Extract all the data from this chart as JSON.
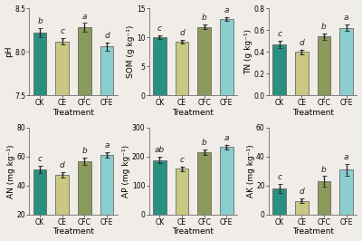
{
  "treatments": [
    "CK",
    "CE",
    "CFC",
    "CFE"
  ],
  "bar_colors": [
    "#2a9080",
    "#c8c882",
    "#8a9a5a",
    "#8acece"
  ],
  "edge_color": "#555555",
  "bg_color": "#f0ede8",
  "plots": [
    {
      "ylabel": "pH",
      "ylim": [
        7.5,
        8.5
      ],
      "yticks": [
        7.5,
        8.0,
        8.5
      ],
      "values": [
        8.22,
        8.12,
        8.28,
        8.06
      ],
      "errors": [
        0.05,
        0.04,
        0.05,
        0.05
      ],
      "letters": [
        "b",
        "c",
        "a",
        "d"
      ]
    },
    {
      "ylabel": "SOM (g kg⁻¹)",
      "ylim": [
        0,
        15
      ],
      "yticks": [
        0,
        5,
        10,
        15
      ],
      "values": [
        10.0,
        9.2,
        11.8,
        13.2
      ],
      "errors": [
        0.35,
        0.3,
        0.4,
        0.3
      ],
      "letters": [
        "c",
        "d",
        "b",
        "a"
      ]
    },
    {
      "ylabel": "TN (g kg⁻¹)",
      "ylim": [
        0.0,
        0.8
      ],
      "yticks": [
        0.0,
        0.2,
        0.4,
        0.6,
        0.8
      ],
      "values": [
        0.47,
        0.4,
        0.54,
        0.62
      ],
      "errors": [
        0.035,
        0.02,
        0.03,
        0.03
      ],
      "letters": [
        "c",
        "d",
        "b",
        "a"
      ]
    },
    {
      "ylabel": "AN (mg kg⁻¹)",
      "ylim": [
        20,
        80
      ],
      "yticks": [
        20,
        40,
        60,
        80
      ],
      "values": [
        51.0,
        47.5,
        57.0,
        61.0
      ],
      "errors": [
        2.5,
        2.0,
        2.5,
        2.0
      ],
      "letters": [
        "c",
        "d",
        "b",
        "a"
      ]
    },
    {
      "ylabel": "AP (mg kg⁻¹)",
      "ylim": [
        0,
        300
      ],
      "yticks": [
        0,
        100,
        200,
        300
      ],
      "values": [
        188.0,
        158.0,
        215.0,
        232.0
      ],
      "errors": [
        12.0,
        8.0,
        10.0,
        9.0
      ],
      "letters": [
        "ab",
        "c",
        "b",
        "a"
      ]
    },
    {
      "ylabel": "AK (mg kg⁻¹)",
      "ylim": [
        0,
        60
      ],
      "yticks": [
        0,
        20,
        40,
        60
      ],
      "values": [
        18.0,
        9.5,
        23.0,
        31.0
      ],
      "errors": [
        3.0,
        1.5,
        3.5,
        4.0
      ],
      "letters": [
        "c",
        "d",
        "b",
        "a"
      ]
    }
  ],
  "xlabel": "Treatment",
  "fontsize_label": 6.5,
  "fontsize_tick": 5.5,
  "fontsize_letter": 6.5,
  "bar_width": 0.6
}
